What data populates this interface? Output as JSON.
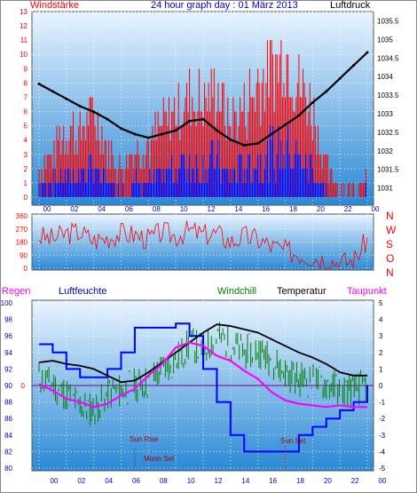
{
  "header": {
    "title": "24 hour graph day : 01 März 2013",
    "left_label": "Windstärke",
    "right_label": "Luftdruck"
  },
  "colors": {
    "wind": "#ff0000",
    "gust_band": "#0000ff",
    "pressure": "#000000",
    "direction": "#ff0000",
    "rain": "#ff00ff",
    "humidity": "#0000ff",
    "windchill": "#008000",
    "temperature": "#000000",
    "dewpoint": "#ff00ff",
    "zero_line": "#800080",
    "bg_top": "#e8f4ff",
    "bg_bottom": "#2a89d6"
  },
  "chart_data": [
    {
      "type": "bar",
      "x_tick_labels": [
        "00",
        "02",
        "04",
        "06",
        "08",
        "10",
        "12",
        "14",
        "16",
        "18",
        "20",
        "22",
        "00"
      ],
      "y_left_label": "Windstärke",
      "y_left_ticks": [
        "0",
        "1",
        "2",
        "3",
        "4",
        "5",
        "6",
        "7",
        "8",
        "9",
        "10",
        "11",
        "12",
        "13"
      ],
      "y_left_range": [
        0,
        13
      ],
      "y_right_label": "Luftdruck",
      "y_right_ticks": [
        "1031",
        "1031.5",
        "1032",
        "1032.5",
        "1033",
        "1033.5",
        "1034",
        "1034.5",
        "1035",
        "1035.5"
      ],
      "y_right_range": [
        1030.75,
        1035.75
      ],
      "series": [
        {
          "kind": "pressure",
          "x_hours": [
            0,
            1,
            2,
            3,
            4,
            5,
            6,
            7,
            8,
            9,
            10,
            11,
            12,
            13,
            14,
            15,
            16,
            17,
            18,
            19,
            20,
            21,
            22,
            23,
            24
          ],
          "values": [
            1033.8,
            1033.6,
            1033.4,
            1033.2,
            1033.05,
            1032.85,
            1032.6,
            1032.45,
            1032.35,
            1032.45,
            1032.55,
            1032.8,
            1032.85,
            1032.55,
            1032.3,
            1032.15,
            1032.2,
            1032.45,
            1032.7,
            1032.95,
            1033.3,
            1033.6,
            1033.95,
            1034.3,
            1034.65
          ]
        },
        {
          "kind": "wind",
          "x_hours": [
            0,
            1,
            2,
            3,
            4,
            5,
            6,
            7,
            8,
            9,
            10,
            11,
            12,
            13,
            14,
            15,
            16,
            17,
            18,
            19,
            20,
            21,
            22,
            23,
            24
          ],
          "values": [
            1,
            2,
            3,
            3,
            4,
            2,
            1,
            2,
            2,
            3,
            4,
            5,
            4,
            5,
            3,
            4,
            5,
            6,
            7,
            5,
            4,
            1,
            0,
            0,
            1
          ],
          "gusts": [
            3,
            4,
            7,
            6,
            8,
            5,
            3,
            5,
            5,
            7,
            8,
            9,
            9,
            10,
            7,
            9,
            11,
            12,
            13,
            11,
            8,
            3,
            1,
            1,
            2
          ]
        }
      ]
    },
    {
      "type": "line",
      "y_left_ticks": [
        "0",
        "90",
        "180",
        "270",
        "360"
      ],
      "y_range": [
        0,
        360
      ],
      "y_right_labels": [
        "N",
        "W",
        "S",
        "O",
        "N"
      ],
      "x_hours": [
        0,
        1,
        2,
        3,
        4,
        5,
        6,
        7,
        8,
        9,
        10,
        11,
        12,
        13,
        14,
        15,
        16,
        17,
        18,
        19,
        20,
        21,
        22,
        23,
        24
      ],
      "values": [
        220,
        200,
        240,
        250,
        190,
        210,
        240,
        230,
        200,
        250,
        220,
        260,
        230,
        240,
        180,
        220,
        200,
        150,
        120,
        100,
        80,
        60,
        40,
        50,
        200
      ]
    },
    {
      "type": "line",
      "legend": [
        "Regen",
        "Luftfeuchte",
        "Windchill",
        "Temperatur",
        "Taupunkt"
      ],
      "x_tick_labels": [
        "00",
        "02",
        "04",
        "06",
        "08",
        "10",
        "12",
        "14",
        "16",
        "18",
        "20",
        "22",
        "00"
      ],
      "y_left_ticks": [
        "80",
        "82",
        "84",
        "86",
        "88",
        "90",
        "92",
        "94",
        "96",
        "98",
        "100"
      ],
      "y_left_range": [
        80,
        100
      ],
      "y_right_ticks": [
        "-5",
        "-4",
        "-3",
        "-2",
        "-1",
        "0",
        "1",
        "2",
        "3",
        "4",
        "5"
      ],
      "y_right_range": [
        -5,
        5
      ],
      "zero_marker": "0",
      "annotations": [
        "Sun Rise",
        "Moon Set",
        "Sun Set"
      ],
      "x_hours": [
        0,
        1,
        2,
        3,
        4,
        5,
        6,
        7,
        8,
        9,
        10,
        11,
        12,
        13,
        14,
        15,
        16,
        17,
        18,
        19,
        20,
        21,
        22,
        23,
        24
      ],
      "series": [
        {
          "name": "Luftfeuchte",
          "values": [
            95,
            94,
            92,
            91,
            91,
            92,
            94,
            97,
            97,
            97,
            97.5,
            96,
            92,
            88,
            84,
            82,
            82,
            82,
            82,
            84,
            85,
            86,
            87,
            88,
            90
          ]
        },
        {
          "name": "Temperatur",
          "values": [
            1.4,
            1.5,
            1.3,
            1.2,
            1.0,
            0.6,
            0.2,
            0.3,
            0.8,
            1.4,
            2.0,
            2.6,
            3.2,
            3.7,
            3.6,
            3.4,
            3.2,
            2.8,
            2.4,
            2.0,
            1.7,
            1.3,
            0.8,
            0.6,
            0.6
          ]
        },
        {
          "name": "Windchill",
          "values": [
            0.5,
            0,
            -0.5,
            -1.2,
            -1.5,
            -0.5,
            -0.3,
            0,
            0.2,
            1.0,
            1.5,
            2.5,
            2.2,
            3.0,
            2.5,
            2.0,
            2.2,
            1.5,
            0.8,
            0.4,
            0.3,
            0.1,
            -0.2,
            -0.3,
            0
          ]
        },
        {
          "name": "Taupunkt",
          "values": [
            0.1,
            -0.3,
            -0.8,
            -1.0,
            -1.3,
            -1.1,
            -0.6,
            -0.2,
            0.6,
            1.3,
            2.3,
            2.6,
            2.4,
            1.8,
            1.5,
            0.9,
            0.4,
            -0.4,
            -0.9,
            -1.1,
            -1.2,
            -1.3,
            -1.2,
            -1.3,
            -1.3
          ]
        }
      ]
    }
  ]
}
